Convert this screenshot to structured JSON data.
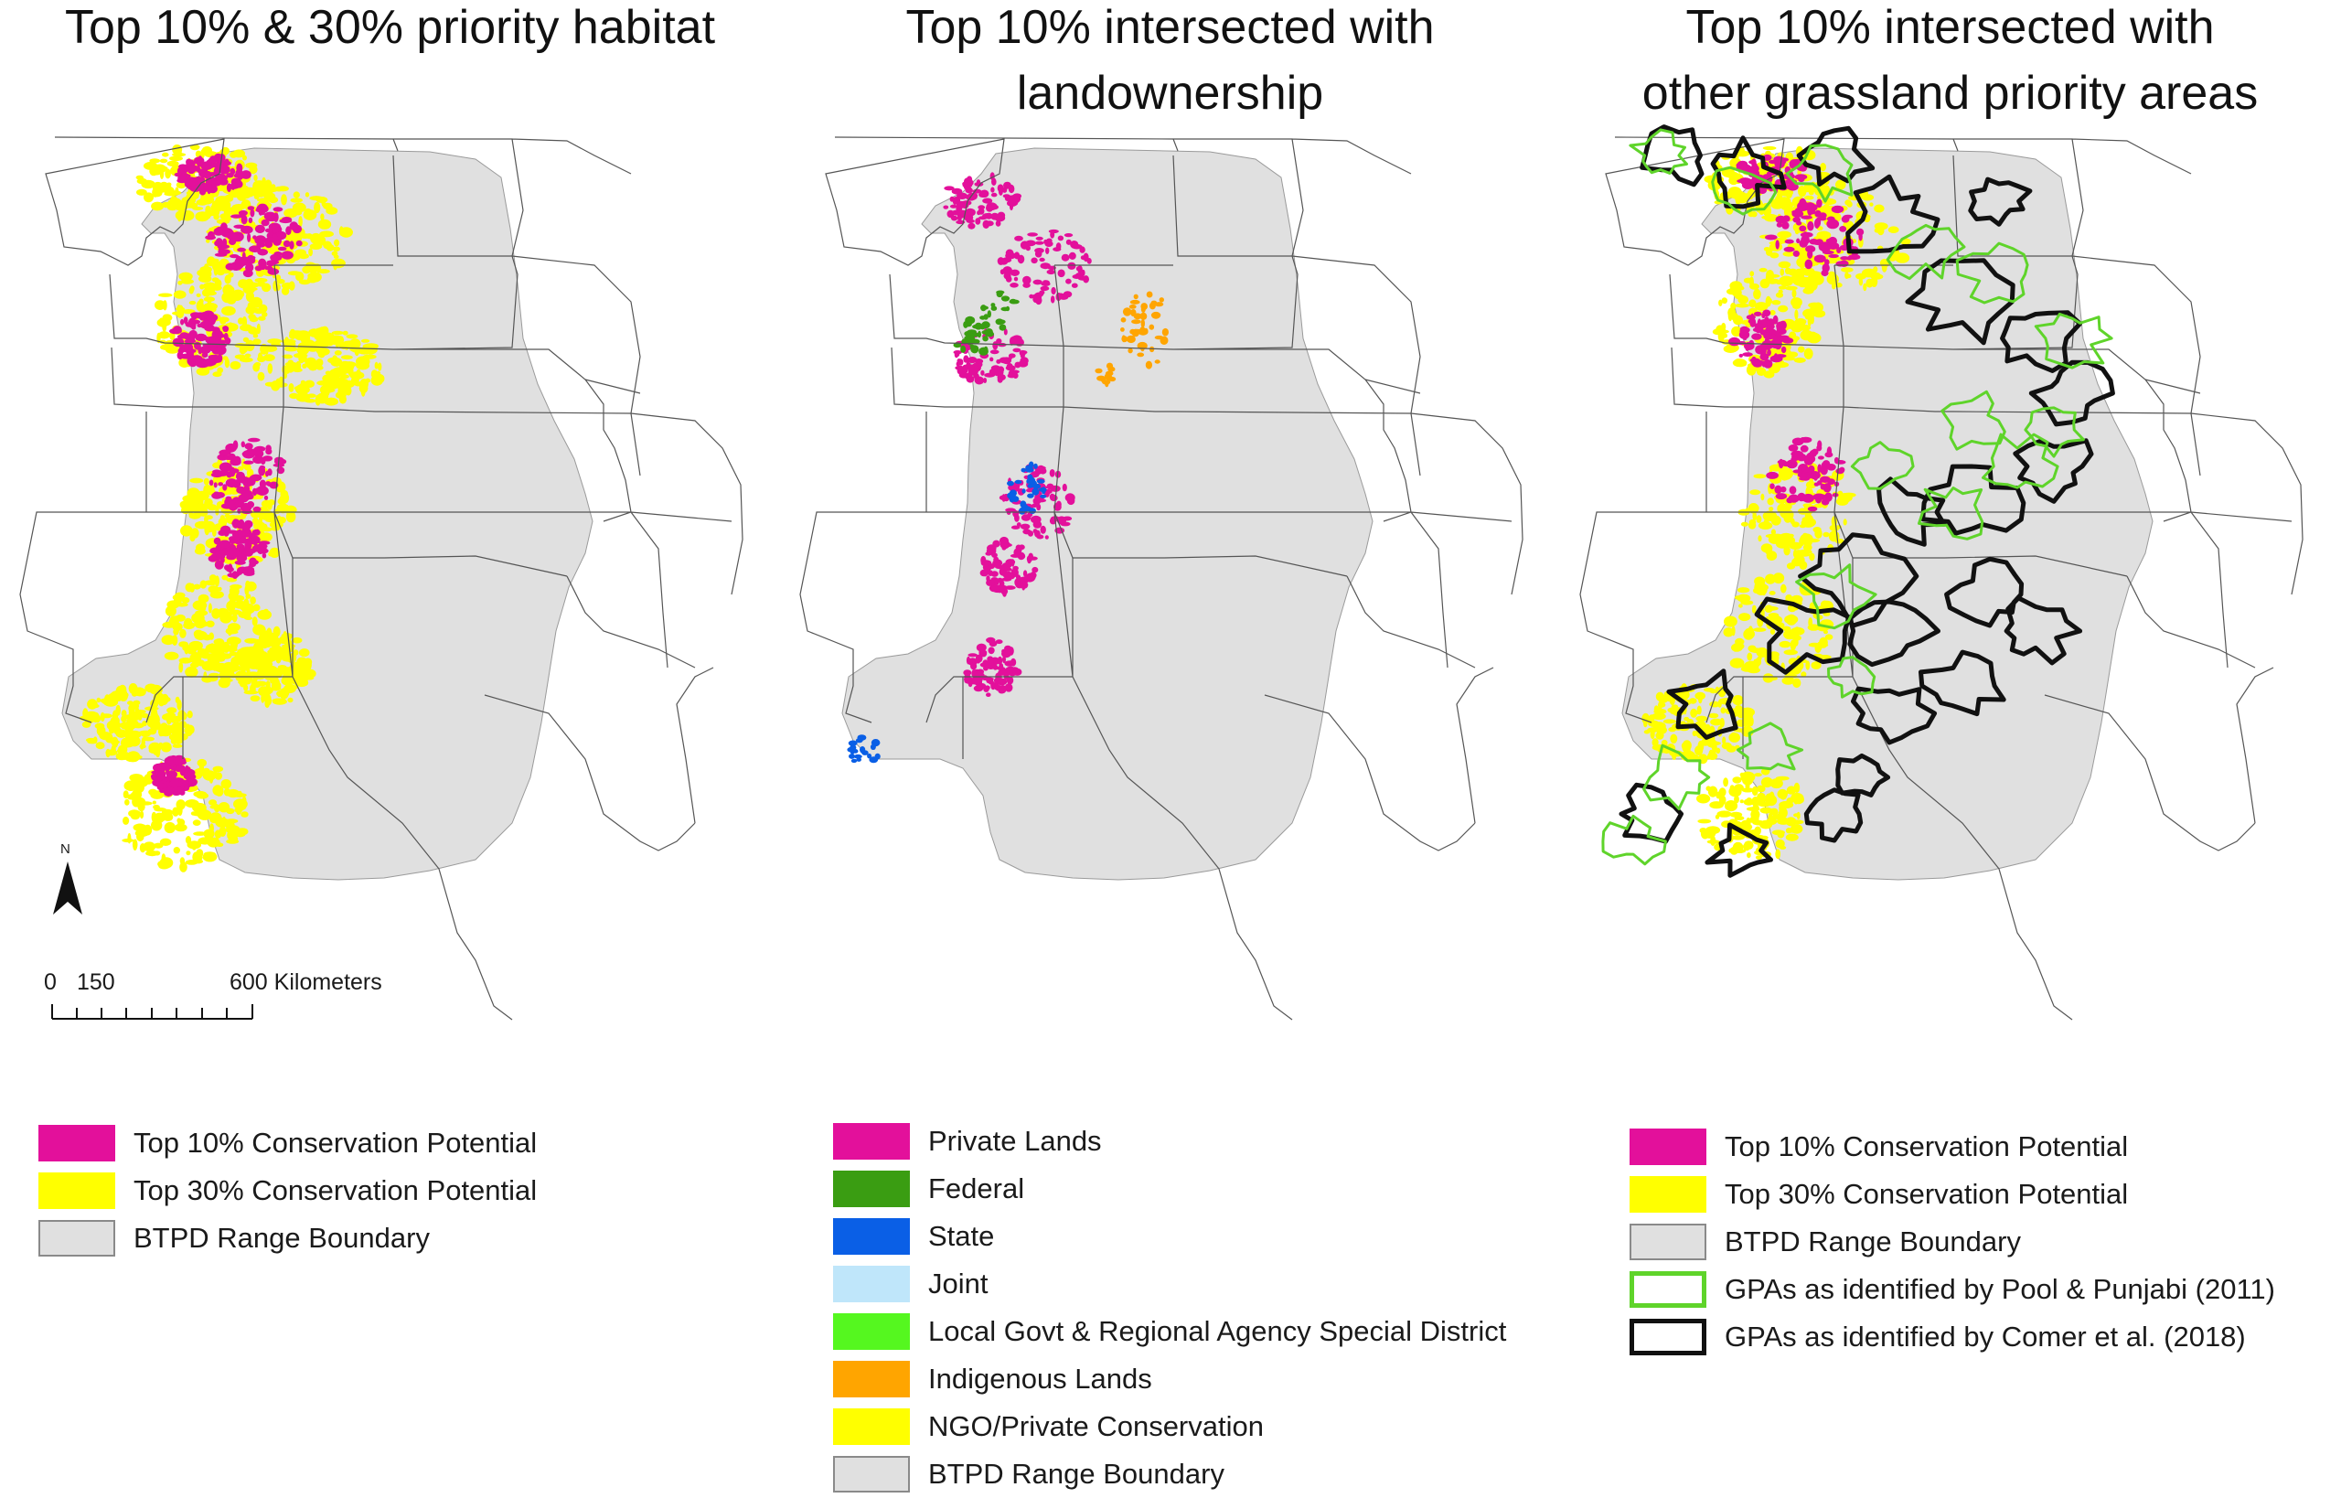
{
  "panels": [
    {
      "id": "habitat",
      "title_lines": [
        "Top 10% & 30% priority habitat"
      ],
      "legend": [
        {
          "label": "Top 10% Conservation  Potential",
          "fill": "#e3109b",
          "stroke": "#e3109b"
        },
        {
          "label": "Top 30% Conservation Potential",
          "fill": "#ffff00",
          "stroke": "#ffff00"
        },
        {
          "label": "BTPD Range Boundary",
          "fill": "#e0e0e0",
          "stroke": "#8a8a8a"
        }
      ]
    },
    {
      "id": "landownership",
      "title_lines": [
        "Top 10% intersected  with",
        "landownership"
      ],
      "legend": [
        {
          "label": "Private Lands",
          "fill": "#e3109b",
          "stroke": "#e3109b"
        },
        {
          "label": "Federal",
          "fill": "#3a9d12",
          "stroke": "#3a9d12"
        },
        {
          "label": "State",
          "fill": "#0a5fe6",
          "stroke": "#0a5fe6"
        },
        {
          "label": "Joint",
          "fill": "#bfe6fa",
          "stroke": "#bfe6fa"
        },
        {
          "label": "Local Govt & Regional Agency Special District",
          "fill": "#55f71f",
          "stroke": "#55f71f"
        },
        {
          "label": "Indigenous Lands",
          "fill": "#ffa500",
          "stroke": "#ffa500"
        },
        {
          "label": "NGO/Private Conservation",
          "fill": "#ffff00",
          "stroke": "#ffff00"
        },
        {
          "label": "BTPD Range Boundary",
          "fill": "#e0e0e0",
          "stroke": "#8a8a8a"
        }
      ]
    },
    {
      "id": "grassland",
      "title_lines": [
        "Top 10% intersected  with",
        "other grassland priority areas"
      ],
      "legend": [
        {
          "label": "Top 10% Conservation  Potential",
          "fill": "#e3109b",
          "stroke": "#e3109b"
        },
        {
          "label": "Top 30% Conservation Potential",
          "fill": "#ffff00",
          "stroke": "#ffff00"
        },
        {
          "label": "BTPD Range Boundary",
          "fill": "#e0e0e0",
          "stroke": "#8a8a8a"
        },
        {
          "label": "GPAs as identified by Pool & Punjabi (2011)",
          "fill": "#ffffff",
          "stroke": "#5fd42a"
        },
        {
          "label": "GPAs as identified by Comer et al. (2018)",
          "fill": "#ffffff",
          "stroke": "#111111"
        }
      ]
    }
  ],
  "north_arrow": {
    "label": "N"
  },
  "scale_bar": {
    "ticks": [
      "0",
      "150",
      "600 Kilometers"
    ]
  },
  "colors": {
    "range": "#e0e0e0",
    "state_line": "#555555",
    "top10": "#e3109b",
    "top30": "#ffff00",
    "federal": "#3a9d12",
    "state": "#0a5fe6",
    "indigenous": "#ffa500",
    "pool": "#5fd42a",
    "comer": "#111111"
  }
}
